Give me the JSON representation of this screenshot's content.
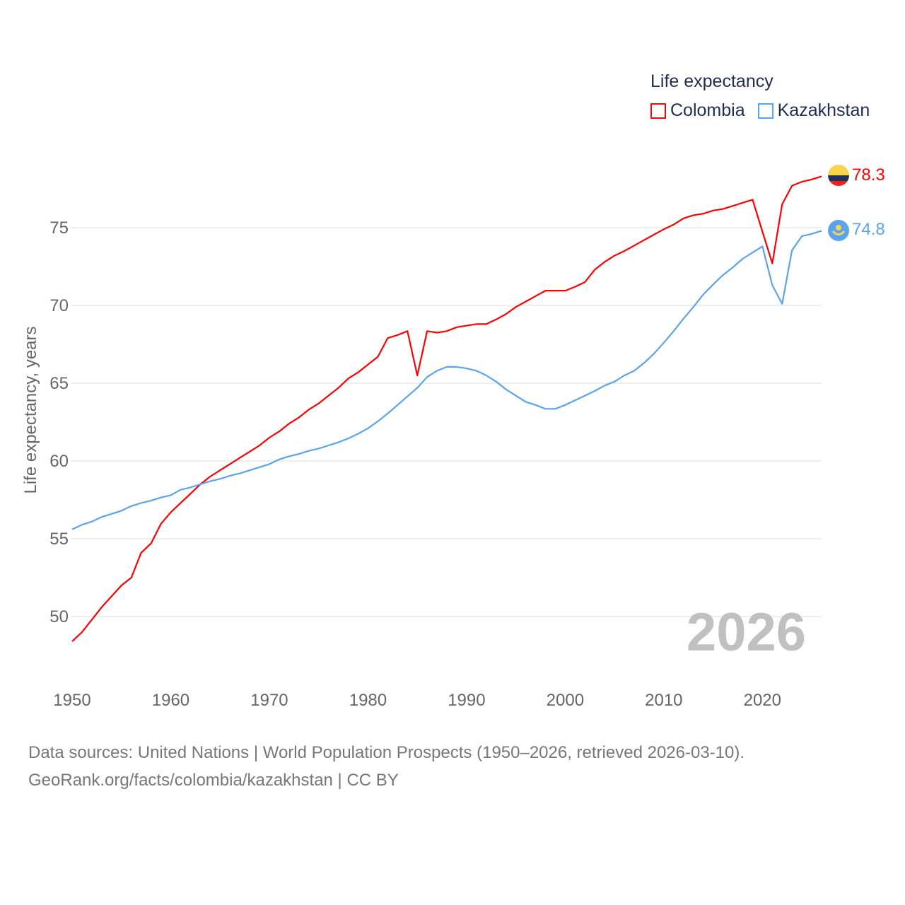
{
  "chart_data": {
    "type": "line",
    "title": "Life expectancy",
    "xlabel": "",
    "ylabel": "Life expectancy, years",
    "xlim": [
      1950,
      2026
    ],
    "ylim": [
      46.5,
      80
    ],
    "grid": true,
    "legend_position": "top-right",
    "x_ticks": [
      "1950",
      "1960",
      "1970",
      "1980",
      "1990",
      "2000",
      "2010",
      "2020"
    ],
    "y_ticks": [
      "50",
      "55",
      "60",
      "65",
      "70",
      "75"
    ],
    "year_watermark": "2026",
    "x": [
      1950,
      1951,
      1952,
      1953,
      1954,
      1955,
      1956,
      1957,
      1958,
      1959,
      1960,
      1961,
      1962,
      1963,
      1964,
      1965,
      1966,
      1967,
      1968,
      1969,
      1970,
      1971,
      1972,
      1973,
      1974,
      1975,
      1976,
      1977,
      1978,
      1979,
      1980,
      1981,
      1982,
      1983,
      1984,
      1985,
      1986,
      1987,
      1988,
      1989,
      1990,
      1991,
      1992,
      1993,
      1994,
      1995,
      1996,
      1997,
      1998,
      1999,
      2000,
      2001,
      2002,
      2003,
      2004,
      2005,
      2006,
      2007,
      2008,
      2009,
      2010,
      2011,
      2012,
      2013,
      2014,
      2015,
      2016,
      2017,
      2018,
      2019,
      2020,
      2021,
      2022,
      2023,
      2024,
      2025,
      2026
    ],
    "series": [
      {
        "name": "Colombia",
        "color": "#ff0000",
        "end_label": "78.3",
        "values": [
          48.4,
          49.0,
          49.8,
          50.6,
          51.3,
          52.0,
          52.5,
          54.1,
          54.7,
          55.95,
          56.7,
          57.3,
          57.9,
          58.5,
          59.0,
          59.4,
          59.8,
          60.2,
          60.6,
          61.0,
          61.5,
          61.9,
          62.4,
          62.8,
          63.3,
          63.7,
          64.2,
          64.7,
          65.3,
          65.7,
          66.2,
          66.7,
          67.9,
          68.1,
          68.35,
          65.5,
          68.35,
          68.25,
          68.35,
          68.6,
          68.7,
          68.8,
          68.8,
          69.1,
          69.45,
          69.9,
          70.25,
          70.6,
          70.95,
          70.95,
          70.95,
          71.2,
          71.5,
          72.3,
          72.8,
          73.2,
          73.5,
          73.85,
          74.2,
          74.55,
          74.9,
          75.2,
          75.6,
          75.8,
          75.9,
          76.1,
          76.2,
          76.4,
          76.6,
          76.8,
          74.75,
          72.7,
          76.5,
          77.7,
          77.95,
          78.1,
          78.3
        ]
      },
      {
        "name": "Kazakhstan",
        "color": "#5aa3ee",
        "end_label": "74.8",
        "values": [
          55.6,
          55.9,
          56.1,
          56.4,
          56.6,
          56.8,
          57.1,
          57.3,
          57.45,
          57.65,
          57.8,
          58.15,
          58.3,
          58.5,
          58.7,
          58.85,
          59.05,
          59.2,
          59.4,
          59.6,
          59.8,
          60.1,
          60.3,
          60.45,
          60.65,
          60.8,
          61.0,
          61.2,
          61.45,
          61.75,
          62.1,
          62.55,
          63.05,
          63.6,
          64.15,
          64.7,
          65.4,
          65.8,
          66.05,
          66.05,
          65.95,
          65.8,
          65.5,
          65.1,
          64.6,
          64.2,
          63.8,
          63.6,
          63.35,
          63.35,
          63.6,
          63.9,
          64.2,
          64.5,
          64.85,
          65.1,
          65.5,
          65.8,
          66.3,
          66.9,
          67.6,
          68.35,
          69.15,
          69.9,
          70.7,
          71.35,
          71.95,
          72.45,
          73.0,
          73.4,
          73.8,
          71.3,
          70.1,
          73.55,
          74.45,
          74.6,
          74.8
        ]
      }
    ]
  },
  "legend": {
    "title": "Life expectancy",
    "items": [
      "Colombia",
      "Kazakhstan"
    ]
  },
  "footer": {
    "source": "Data sources: United Nations | World Population Prospects (1950–2026, retrieved 2026-03-10).",
    "credit": "GeoRank.org/facts/colombia/kazakhstan | CC BY"
  }
}
